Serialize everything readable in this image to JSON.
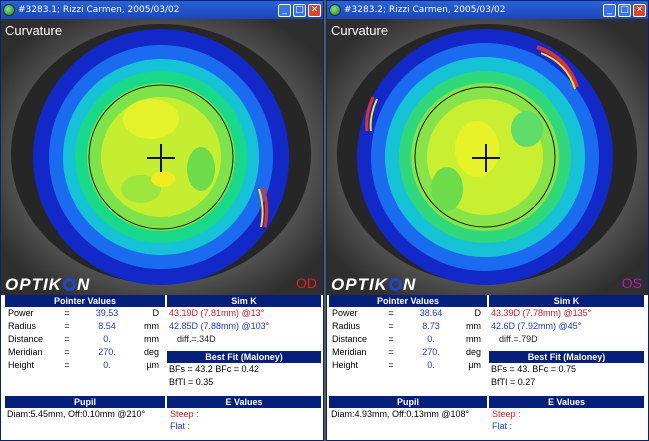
{
  "windows": [
    {
      "title": "#3283.1; Rizzi Carmen, 2005/03/02",
      "map_label": "Curvature",
      "eye": "OD",
      "eye_color": "#e02020",
      "brand": "OPTIKON",
      "pointer": {
        "header": "Pointer Values",
        "rows": [
          {
            "label": "Power",
            "eq": "=",
            "value": "39.53",
            "unit": "D"
          },
          {
            "label": "Radius",
            "eq": "=",
            "value": "8.54",
            "unit": "mm"
          },
          {
            "label": "Distance",
            "eq": "=",
            "value": "0.",
            "unit": "mm"
          },
          {
            "label": "Meridian",
            "eq": "=",
            "value": "270.",
            "unit": "deg"
          },
          {
            "label": "Height",
            "eq": "=",
            "value": "0.",
            "unit": "µm"
          }
        ]
      },
      "simk": {
        "header": "Sim K",
        "steep": "43.19D (7.81mm) @13°",
        "flat": "42.85D (7.88mm) @103°",
        "diff": "diff.=.34D"
      },
      "bestfit": {
        "header": "Best Fit (Maloney)",
        "bfs": "BFs = 43.2 BFc = 0.42",
        "bfti": "BfTI = 0.35"
      },
      "pupil": {
        "header": "Pupil",
        "text": "Diam:5.45mm, Off:0.10mm @210°"
      },
      "evalues": {
        "header": "E Values",
        "steep": "Steep :",
        "flat": "Flat   :"
      }
    },
    {
      "title": "#3283.2; Rizzi Carmen, 2005/03/02",
      "map_label": "Curvature",
      "eye": "OS",
      "eye_color": "#b020b0",
      "brand": "OPTIKON",
      "pointer": {
        "header": "Pointer Values",
        "rows": [
          {
            "label": "Power",
            "eq": "=",
            "value": "38.64",
            "unit": "D"
          },
          {
            "label": "Radius",
            "eq": "=",
            "value": "8.73",
            "unit": "mm"
          },
          {
            "label": "Distance",
            "eq": "=",
            "value": "0.",
            "unit": "mm"
          },
          {
            "label": "Meridian",
            "eq": "=",
            "value": "270.",
            "unit": "deg"
          },
          {
            "label": "Height",
            "eq": "=",
            "value": "0.",
            "unit": "µm"
          }
        ]
      },
      "simk": {
        "header": "Sim K",
        "steep": "43.39D (7.78mm) @135°",
        "flat": "42.6D (7.92mm) @45°",
        "diff": "diff.=.79D"
      },
      "bestfit": {
        "header": "Best Fit (Maloney)",
        "bfs": "BFs = 43. BFc = 0.75",
        "bfti": "BfTI = 0.27"
      },
      "pupil": {
        "header": "Pupil",
        "text": "Diam:4.93mm, Off:0.13mm @108°"
      },
      "evalues": {
        "header": "E Values",
        "steep": "Steep :",
        "flat": "Flat   :"
      }
    }
  ],
  "titlebar_buttons": {
    "minimize": "_",
    "maximize": "□",
    "close": "✕"
  }
}
